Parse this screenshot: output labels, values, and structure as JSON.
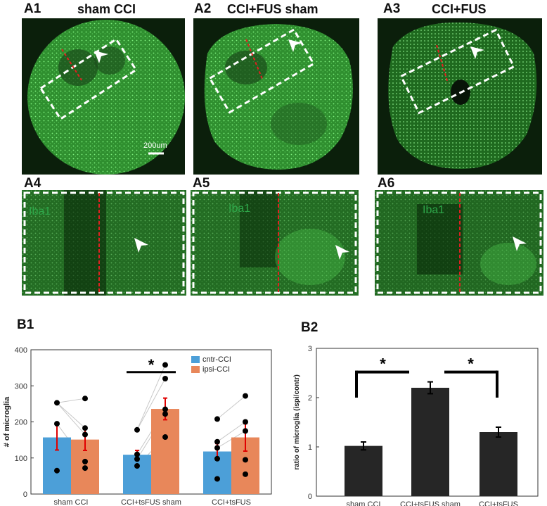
{
  "figure": {
    "panels_top": [
      {
        "label": "A1",
        "title": "sham CCI"
      },
      {
        "label": "A2",
        "title": "CCI+FUS sham"
      },
      {
        "label": "A3",
        "title": "CCI+FUS"
      }
    ],
    "panels_zoom": [
      {
        "label": "A4",
        "stain": "Iba1"
      },
      {
        "label": "A5",
        "stain": "Iba1"
      },
      {
        "label": "A6",
        "stain": "Iba1"
      }
    ],
    "scale_bar": "200um",
    "colors": {
      "tissue_green": "#3fbf3f",
      "background_dark": "#0a1a0a",
      "midline": "#e02020",
      "box": "#ffffff",
      "cntr": "#4c9fd8",
      "ipsi": "#e8875a",
      "error_red": "#e00000",
      "bar_dark": "#262626"
    }
  },
  "chart_data": [
    {
      "label": "B1",
      "type": "bar",
      "title": "",
      "xlabel": "",
      "ylabel": "# of microglia",
      "ylim": [
        0,
        400
      ],
      "yticks": [
        "0",
        "100",
        "200",
        "300",
        "400"
      ],
      "categories": [
        "sham CCI",
        "CCI+tsFUS sham",
        "CCI+tsFUS"
      ],
      "series": [
        {
          "name": "cntr-CCI",
          "values": [
            157,
            109,
            118
          ],
          "sem": [
            35,
            12,
            22
          ],
          "points": [
            [
              65,
              195,
              253
            ],
            [
              78,
              97,
              110,
              178
            ],
            [
              42,
              98,
              128,
              145,
              208
            ]
          ]
        },
        {
          "name": "ipsi-CCI",
          "values": [
            151,
            236,
            157
          ],
          "sem": [
            30,
            30,
            38
          ],
          "points": [
            [
              72,
              90,
              165,
              183,
              265
            ],
            [
              158,
              222,
              235,
              320,
              358
            ],
            [
              55,
              95,
              175,
              200,
              272
            ]
          ]
        }
      ],
      "legend": {
        "position": "top-right",
        "entries": [
          "cntr-CCI",
          "ipsi-CCI"
        ]
      },
      "significance": [
        {
          "between": "cntr-CCI vs ipsi-CCI",
          "group": "CCI+tsFUS sham",
          "mark": "*"
        }
      ]
    },
    {
      "label": "B2",
      "type": "bar",
      "title": "",
      "xlabel": "",
      "ylabel": "ratio of microglia (ispi/contr)",
      "ylim": [
        0,
        3
      ],
      "yticks": [
        "0",
        "1",
        "2",
        "3"
      ],
      "categories": [
        "sham CCI",
        "CCI+tsFUS sham",
        "CCI+tsFUS"
      ],
      "values": [
        1.02,
        2.2,
        1.3
      ],
      "sem": [
        0.08,
        0.12,
        0.1
      ],
      "significance": [
        {
          "between": [
            "sham CCI",
            "CCI+tsFUS sham"
          ],
          "mark": "*"
        },
        {
          "between": [
            "CCI+tsFUS sham",
            "CCI+tsFUS"
          ],
          "mark": "*"
        }
      ]
    }
  ]
}
